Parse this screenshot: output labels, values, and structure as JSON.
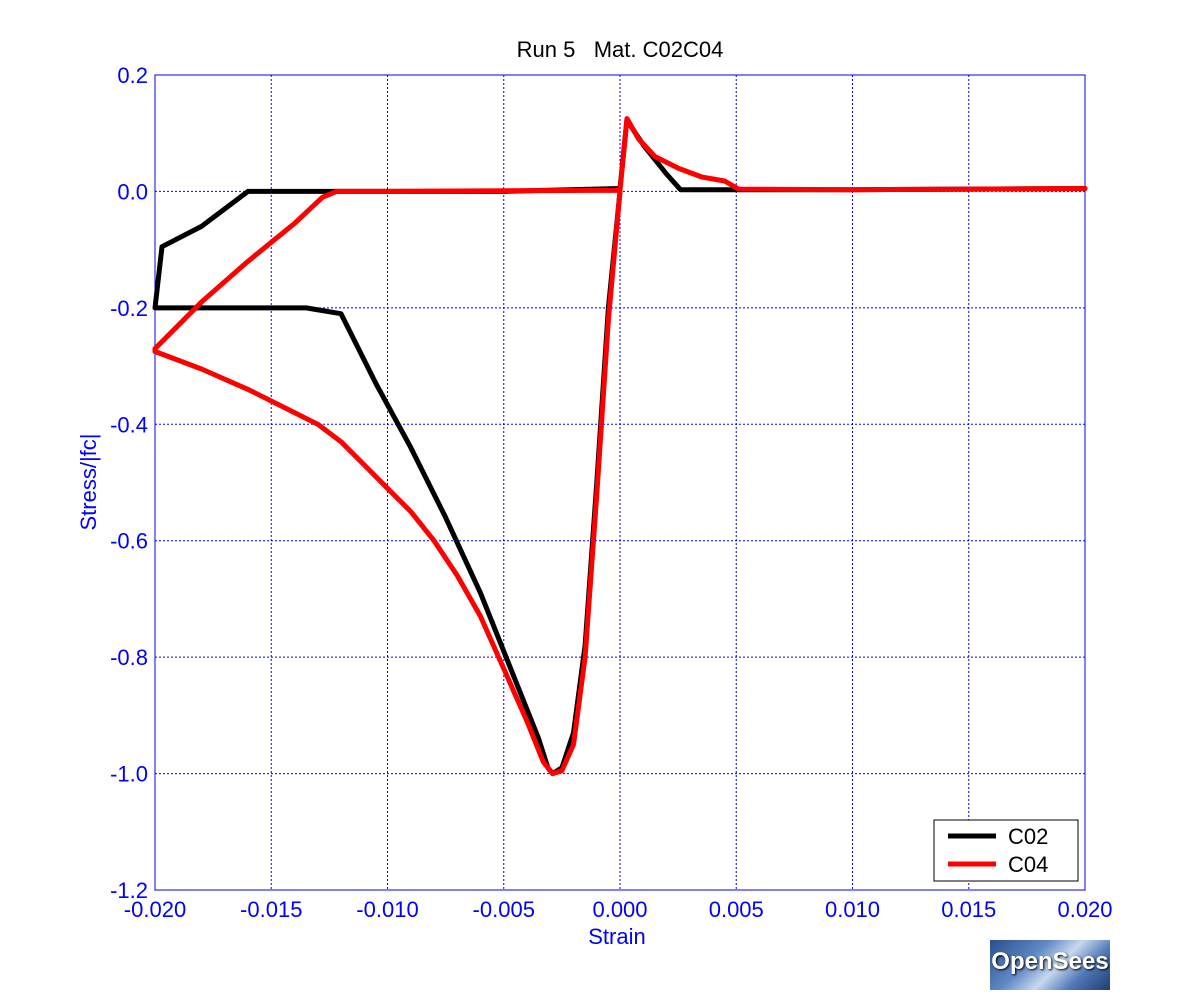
{
  "chart_data": {
    "type": "line",
    "title": "Run 5   Mat. C02C04",
    "xlabel": "Strain",
    "ylabel": "Stress/|fc|",
    "xlim": [
      -0.02,
      0.02
    ],
    "ylim": [
      -1.2,
      0.2
    ],
    "xticks": [
      -0.02,
      -0.015,
      -0.01,
      -0.005,
      0.0,
      0.005,
      0.01,
      0.015,
      0.02
    ],
    "xtick_labels": [
      "-0.020",
      "-0.015",
      "-0.010",
      "-0.005",
      "0.000",
      "0.005",
      "0.010",
      "0.015",
      "0.020"
    ],
    "yticks": [
      0.2,
      0.0,
      -0.2,
      -0.4,
      -0.6,
      -0.8,
      -1.0,
      -1.2
    ],
    "ytick_labels": [
      "0.2",
      "0.0",
      "-0.2",
      "-0.4",
      "-0.6",
      "-0.8",
      "-1.0",
      "-1.2"
    ],
    "grid": true,
    "legend_position": "bottom-right",
    "series": [
      {
        "name": "C02",
        "color": "#000000",
        "x": [
          0.0,
          -0.0005,
          -0.001,
          -0.0015,
          -0.002,
          -0.0025,
          -0.0029,
          -0.0031,
          -0.0035,
          -0.0045,
          -0.006,
          -0.0075,
          -0.009,
          -0.0105,
          -0.012,
          -0.0135,
          -0.0138,
          -0.014,
          -0.02,
          -0.02,
          -0.0197,
          -0.018,
          -0.016,
          -0.015,
          -0.013,
          -0.01,
          -0.005,
          0.0,
          0.0003,
          0.0005,
          0.001,
          0.002,
          0.0026,
          0.005,
          0.01,
          0.015,
          0.02
        ],
        "y": [
          0.0,
          -0.2,
          -0.5,
          -0.78,
          -0.93,
          -0.99,
          -1.0,
          -0.99,
          -0.94,
          -0.84,
          -0.69,
          -0.56,
          -0.44,
          -0.33,
          -0.21,
          -0.2,
          -0.2,
          -0.2,
          -0.2,
          -0.2,
          -0.095,
          -0.06,
          0.0,
          0.0,
          0.0,
          0.0,
          0.0,
          0.005,
          0.125,
          0.11,
          0.08,
          0.03,
          0.003,
          0.003,
          0.003,
          0.004,
          0.005
        ]
      },
      {
        "name": "C04",
        "color": "#ff0000",
        "x": [
          0.0,
          -0.0005,
          -0.001,
          -0.0015,
          -0.002,
          -0.0025,
          -0.0029,
          -0.0033,
          -0.004,
          -0.005,
          -0.006,
          -0.007,
          -0.008,
          -0.009,
          -0.01,
          -0.011,
          -0.012,
          -0.013,
          -0.014,
          -0.016,
          -0.018,
          -0.02,
          -0.02,
          -0.019,
          -0.018,
          -0.016,
          -0.014,
          -0.0128,
          -0.0122,
          -0.01,
          -0.005,
          0.0,
          0.0003,
          0.0008,
          0.0015,
          0.0025,
          0.0035,
          0.0045,
          0.0051,
          0.01,
          0.015,
          0.02
        ],
        "y": [
          0.0,
          -0.22,
          -0.52,
          -0.8,
          -0.95,
          -0.995,
          -1.0,
          -0.98,
          -0.91,
          -0.82,
          -0.73,
          -0.66,
          -0.6,
          -0.55,
          -0.51,
          -0.47,
          -0.43,
          -0.4,
          -0.38,
          -0.34,
          -0.305,
          -0.275,
          -0.27,
          -0.23,
          -0.19,
          -0.12,
          -0.055,
          -0.01,
          0.0,
          0.0,
          0.001,
          0.002,
          0.125,
          0.09,
          0.06,
          0.04,
          0.025,
          0.018,
          0.004,
          0.003,
          0.004,
          0.005
        ]
      }
    ]
  },
  "logo": {
    "text": "OpenSees"
  }
}
